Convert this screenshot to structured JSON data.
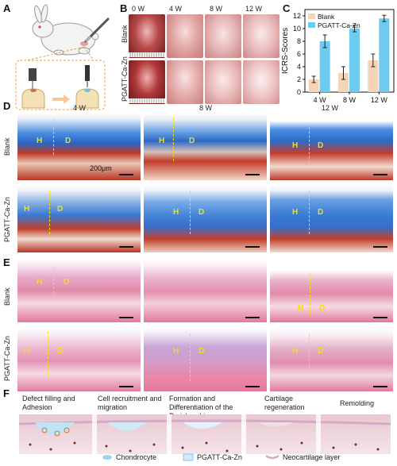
{
  "panels": {
    "A": "A",
    "B": "B",
    "C": "C",
    "D": "D",
    "E": "E",
    "F": "F"
  },
  "panel_b": {
    "columns": [
      "0 W",
      "4 W",
      "8 W",
      "12 W"
    ],
    "rows": [
      "Blank",
      "PGATT-Ca-Zn"
    ]
  },
  "chart_data": {
    "type": "bar",
    "categories": [
      "4 W",
      "8 W",
      "12 W"
    ],
    "series": [
      {
        "name": "Blank",
        "values": [
          2,
          3,
          5
        ],
        "errors": [
          0.5,
          1.0,
          1.0
        ],
        "color": "#f6d4b8"
      },
      {
        "name": "PGATT-Ca-Zn",
        "values": [
          8,
          10,
          11.6
        ],
        "errors": [
          1.0,
          0.5,
          0.5
        ],
        "color": "#6ccbef"
      }
    ],
    "ylabel": "ICRS-Scores",
    "ylim": [
      0,
      13
    ],
    "yticks": [
      0,
      2,
      4,
      6,
      8,
      10,
      12
    ],
    "grid": false,
    "legend": "top-left"
  },
  "panel_d": {
    "columns": [
      "4 W",
      "8 W",
      "12 W"
    ],
    "rows": [
      "Blank",
      "PGATT-Ca-Zn"
    ],
    "scale": "200μm",
    "h": "H",
    "d": "D"
  },
  "panel_e": {
    "rows": [
      "Blank",
      "PGATT-Ca-Zn"
    ],
    "h": "H",
    "d": "D"
  },
  "panel_f": {
    "stages": [
      "Defect filling and Adhesion",
      "Cell recruitment and migration",
      "Formation and Differentiation of the Perichondrium",
      "Cartilage regeneration",
      "Remolding"
    ],
    "legend": [
      "Chondrocyte",
      "PGATT-Ca-Zn",
      "Neocartilage layer"
    ]
  }
}
